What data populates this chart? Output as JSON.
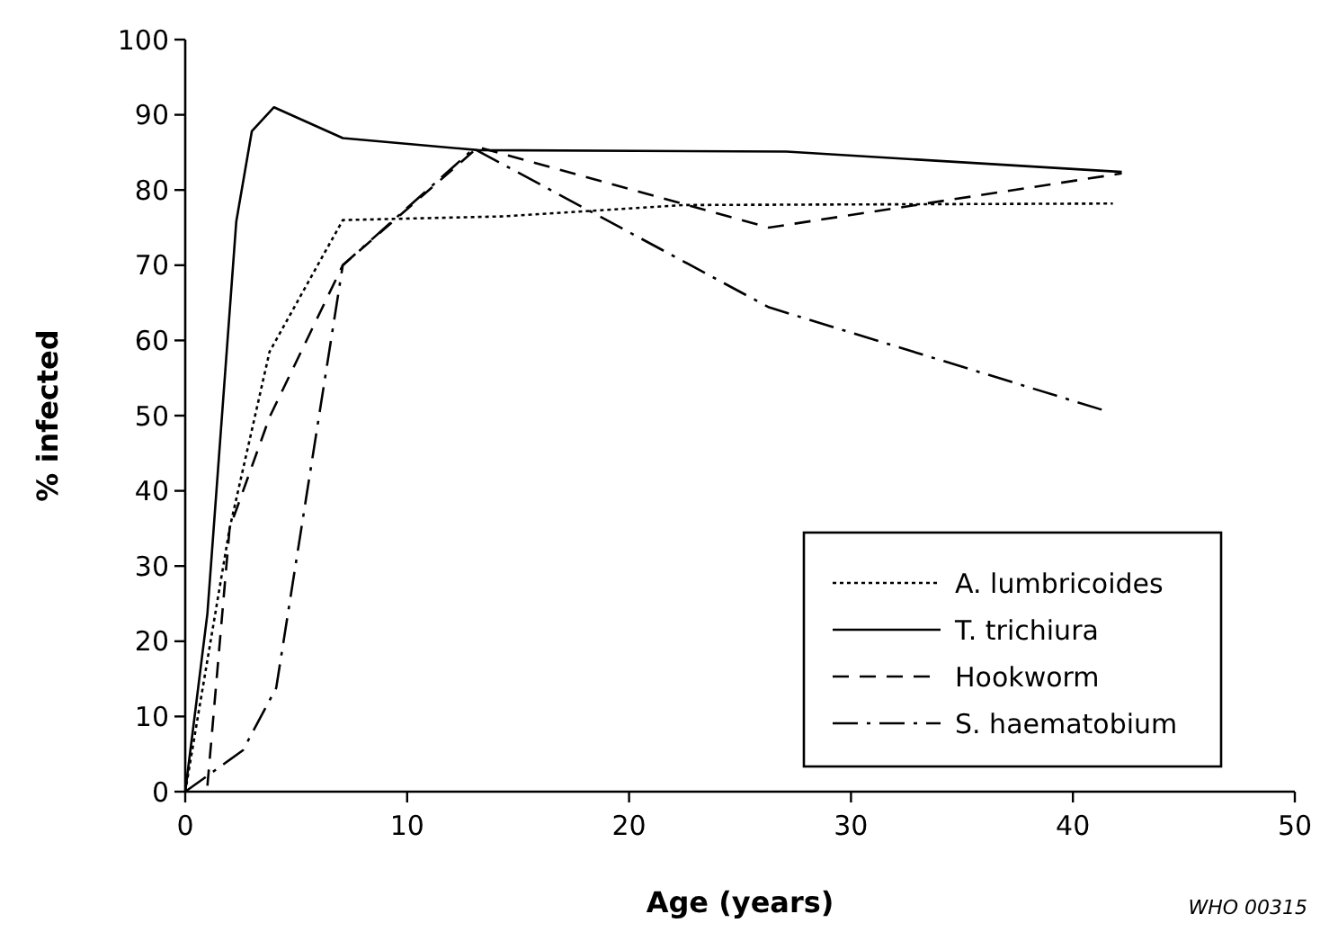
{
  "chart_data": {
    "type": "line",
    "xlabel": "Age (years)",
    "ylabel": "% infected",
    "xlim": [
      0,
      50
    ],
    "ylim": [
      0,
      100
    ],
    "xticks": [
      0,
      10,
      20,
      30,
      40,
      50
    ],
    "yticks": [
      0,
      10,
      20,
      30,
      40,
      50,
      60,
      70,
      80,
      90,
      100
    ],
    "grid": false,
    "legend": "bottom right",
    "marker": "none",
    "annotations": [
      "WHO 00315"
    ],
    "series": [
      {
        "name": "A. lumbricoides",
        "color": "#000000",
        "line_style": "dotted",
        "x": [
          0,
          2.0,
          3.8,
          7.1,
          14.4,
          22.5,
          41.8
        ],
        "values": [
          0,
          35,
          58.5,
          76,
          76.5,
          78,
          78.2
        ]
      },
      {
        "name": "T. trichiura",
        "color": "#000000",
        "line_style": "solid",
        "x": [
          0,
          1.0,
          2.3,
          3.0,
          4.0,
          7.1,
          13.2,
          27.1,
          42.2
        ],
        "values": [
          0,
          23.7,
          75.8,
          87.8,
          91,
          86.9,
          85.3,
          85.1,
          82.4
        ]
      },
      {
        "name": "Hookworm",
        "color": "#000000",
        "line_style": "dashed",
        "x": [
          1.0,
          2.0,
          3.8,
          7.1,
          13.2,
          26.3,
          42.2
        ],
        "values": [
          0.8,
          35,
          49.8,
          70,
          85.7,
          75,
          82.2
        ]
      },
      {
        "name": "S. haematobium",
        "color": "#000000",
        "line_style": "dashdot",
        "x": [
          0,
          2.6,
          4.1,
          7.1,
          13.0,
          26.3,
          41.4
        ],
        "values": [
          0,
          5.5,
          13.8,
          70,
          85.5,
          64.4,
          50.7
        ]
      }
    ]
  }
}
